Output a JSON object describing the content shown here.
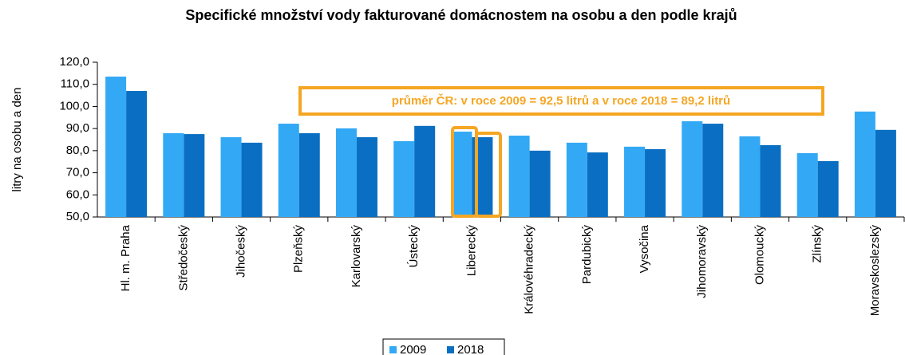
{
  "chart_data": {
    "type": "bar",
    "title": "Specifické množství vody fakturované domácnostem na osobu a den podle krajů",
    "ylabel": "litry na osobu a den",
    "annotation": "průměr ČR: v roce 2009 = 92,5 litrů a v roce 2018 = 89,2 litrů",
    "categories": [
      "Hl. m. Praha",
      "Středočeský",
      "Jihočeský",
      "Plzeňský",
      "Karlovarský",
      "Ústecký",
      "Liberecký",
      "Královéhradecký",
      "Pardubický",
      "Vysočina",
      "Jihomoravský",
      "Olomoucký",
      "Zlínský",
      "Moravskoslezský"
    ],
    "series": [
      {
        "name": "2009",
        "color": "#33a9f5",
        "values": [
          113.5,
          87.9,
          86.1,
          92.2,
          90.1,
          84.3,
          88.6,
          86.8,
          83.6,
          81.8,
          93.3,
          86.5,
          78.9,
          97.7
        ]
      },
      {
        "name": "2018",
        "color": "#0a6fc2",
        "values": [
          107.0,
          87.5,
          83.6,
          87.9,
          86.1,
          91.2,
          86.1,
          80.0,
          79.2,
          80.7,
          92.2,
          82.5,
          75.3,
          89.4
        ]
      }
    ],
    "ylim": [
      50,
      120
    ],
    "yticks": [
      {
        "value": 50,
        "label": "50,0"
      },
      {
        "value": 60,
        "label": "60,0"
      },
      {
        "value": 70,
        "label": "70,0"
      },
      {
        "value": 80,
        "label": "80,0"
      },
      {
        "value": 90,
        "label": "90,0"
      },
      {
        "value": 100,
        "label": "100,0"
      },
      {
        "value": 110,
        "label": "110,0"
      },
      {
        "value": 120,
        "label": "120,0"
      }
    ],
    "legend": "bottom"
  }
}
